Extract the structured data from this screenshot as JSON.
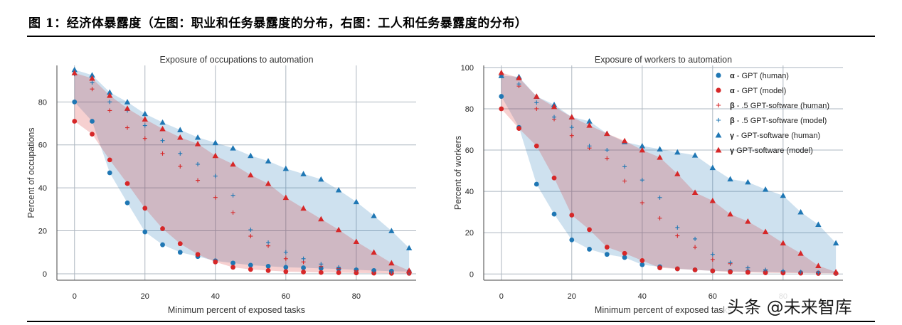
{
  "figure_title": "图 1：经济体暴露度（左图：职业和任务暴露度的分布，右图：工人和任务暴露度的分布）",
  "watermark": "头条 @未来智库",
  "colors": {
    "blue": "#1f77b4",
    "red": "#d62728",
    "grid": "#aeb7c0",
    "axis": "#555555"
  },
  "chart_data": [
    {
      "type": "scatter",
      "title": "Exposure of occupations to automation",
      "xlabel": "Minimum percent of exposed tasks",
      "ylabel": "Percent of occupations",
      "xlim": [
        -5,
        97
      ],
      "ylim": [
        -3,
        97
      ],
      "xticks": [
        0,
        20,
        40,
        60,
        80
      ],
      "yticks": [
        0,
        20,
        40,
        60,
        80
      ],
      "grid": true,
      "legend": "none",
      "shaded_regions": [
        {
          "color": "#1f77b4",
          "upper": "γ - GPT-software (human)",
          "lower": "α - GPT (human)"
        },
        {
          "color": "#d62728",
          "upper": "γ GPT-software (model)",
          "lower": "α - GPT (model)"
        }
      ],
      "x": [
        0,
        5,
        10,
        15,
        20,
        25,
        30,
        35,
        40,
        45,
        50,
        55,
        60,
        65,
        70,
        75,
        80,
        85,
        90,
        95
      ],
      "series": [
        {
          "name": "α - GPT (human)",
          "marker": "circle",
          "color": "#1f77b4",
          "values": [
            80,
            71,
            47,
            33,
            19.5,
            13.5,
            10,
            8,
            6,
            5,
            4,
            3.5,
            3,
            2.8,
            2.5,
            2.2,
            1.8,
            1.5,
            1.2,
            1
          ]
        },
        {
          "name": "α - GPT (model)",
          "marker": "circle",
          "color": "#d62728",
          "values": [
            71,
            65,
            53,
            42,
            30.5,
            21,
            14,
            9,
            5.5,
            3,
            2,
            1.5,
            1,
            0.8,
            0.6,
            0.5,
            0.4,
            0.3,
            0.2,
            0.2
          ]
        },
        {
          "name": "β - .5 GPT-software (human)",
          "marker": "plus",
          "color": "#d62728",
          "values": [
            93,
            86,
            76,
            68,
            63,
            56,
            50,
            43.5,
            35.5,
            28.5,
            17.5,
            13,
            7,
            5.5,
            3.5,
            2.5,
            1.5,
            1,
            0.5,
            0.3
          ]
        },
        {
          "name": "β - .5 GPT-software (model)",
          "marker": "plus",
          "color": "#1f77b4",
          "values": [
            93,
            89,
            80,
            76,
            69,
            62,
            56,
            51,
            45.5,
            36.5,
            20.5,
            14.5,
            10,
            7,
            4.5,
            3,
            2,
            1.2,
            0.8,
            0.5
          ]
        },
        {
          "name": "γ - GPT-software (human)",
          "marker": "triangle",
          "color": "#1f77b4",
          "values": [
            95,
            92.5,
            84.5,
            80,
            74.5,
            70.5,
            67,
            63.5,
            61,
            58.5,
            55,
            52.5,
            49,
            46.5,
            44,
            39,
            33.5,
            27,
            20,
            12
          ]
        },
        {
          "name": "γ GPT-software (model)",
          "marker": "triangle",
          "color": "#d62728",
          "values": [
            93.5,
            91,
            83,
            77,
            72,
            67.5,
            63.5,
            60.5,
            55,
            51,
            46,
            42,
            35.5,
            30.5,
            25.5,
            20.5,
            15,
            10,
            5,
            1.5
          ]
        }
      ]
    },
    {
      "type": "scatter",
      "title": "Exposure of workers to automation",
      "xlabel": "Minimum percent of exposed tasks",
      "ylabel": "Percent of workers",
      "xlim": [
        -5,
        97
      ],
      "ylim": [
        -3,
        101
      ],
      "xticks": [
        0,
        20,
        40,
        60,
        80
      ],
      "yticks": [
        0,
        20,
        40,
        60,
        80,
        100
      ],
      "grid": true,
      "legend": "top-right",
      "shaded_regions": [
        {
          "color": "#1f77b4",
          "upper": "γ - GPT-software (human)",
          "lower": "α - GPT (human)"
        },
        {
          "color": "#d62728",
          "upper": "γ GPT-software (model)",
          "lower": "α - GPT (model)"
        }
      ],
      "x": [
        0,
        5,
        10,
        15,
        20,
        25,
        30,
        35,
        40,
        45,
        50,
        55,
        60,
        65,
        70,
        75,
        80,
        85,
        90,
        95
      ],
      "series": [
        {
          "name": "α - GPT (human)",
          "marker": "circle",
          "color": "#1f77b4",
          "values": [
            86,
            71,
            43.5,
            29,
            16.5,
            12,
            9.5,
            8,
            4.5,
            3.5,
            2.5,
            2,
            1.5,
            1.3,
            1.1,
            0.9,
            0.8,
            0.6,
            0.5,
            0.4
          ]
        },
        {
          "name": "α - GPT (model)",
          "marker": "circle",
          "color": "#d62728",
          "values": [
            80,
            70.5,
            62,
            46.5,
            28.5,
            21.5,
            13,
            10,
            6.5,
            3,
            2.5,
            2,
            1.5,
            1,
            0.8,
            0.6,
            0.5,
            0.4,
            0.3,
            0.3
          ]
        },
        {
          "name": "β - .5 GPT-software (human)",
          "marker": "plus",
          "color": "#d62728",
          "values": [
            96,
            91,
            80,
            75,
            67,
            61,
            56,
            45,
            34.5,
            27,
            18.5,
            13,
            7,
            5,
            3,
            2,
            1.2,
            0.8,
            0.5,
            0.3
          ]
        },
        {
          "name": "β - .5 GPT-software (model)",
          "marker": "plus",
          "color": "#1f77b4",
          "values": [
            96,
            92,
            83,
            76,
            71,
            62,
            60,
            52,
            45.5,
            37,
            22.5,
            17,
            9.5,
            5.5,
            3,
            2,
            1.5,
            1,
            0.6,
            0.4
          ]
        },
        {
          "name": "γ - GPT-software (human)",
          "marker": "triangle",
          "color": "#1f77b4",
          "values": [
            96,
            95.5,
            86,
            82,
            76,
            74,
            68,
            64,
            62,
            60.5,
            59,
            57.5,
            51.5,
            46,
            44.5,
            41,
            38,
            30,
            24,
            15
          ]
        },
        {
          "name": "γ GPT-software (model)",
          "marker": "triangle",
          "color": "#d62728",
          "values": [
            97.5,
            95,
            86,
            81,
            76,
            72,
            68,
            64.5,
            60,
            56.5,
            48.5,
            39.5,
            35.5,
            29,
            25.5,
            20.5,
            15,
            10,
            4,
            1
          ]
        }
      ]
    }
  ]
}
